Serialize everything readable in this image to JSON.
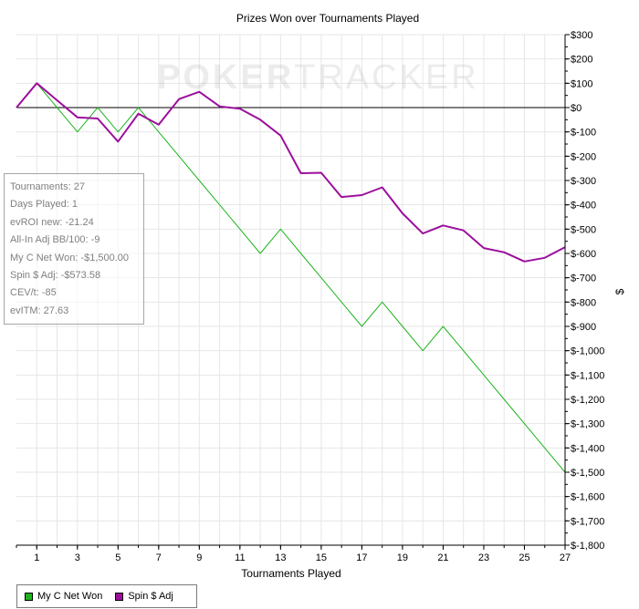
{
  "chart_data": {
    "type": "line",
    "title": "Prizes Won over Tournaments Played",
    "xlabel": "Tournaments Played",
    "ylabel": "$",
    "xlim": [
      0,
      27
    ],
    "ylim": [
      -1800,
      300
    ],
    "x_ticks": [
      1,
      3,
      5,
      7,
      9,
      11,
      13,
      15,
      17,
      19,
      21,
      23,
      25,
      27
    ],
    "y_ticks": [
      300,
      200,
      100,
      0,
      -100,
      -200,
      -300,
      -400,
      -500,
      -600,
      -700,
      -800,
      -900,
      -1000,
      -1100,
      -1200,
      -1300,
      -1400,
      -1500,
      -1600,
      -1700,
      -1800
    ],
    "y_tick_labels": [
      "$300",
      "$200",
      "$100",
      "$0",
      "$-100",
      "$-200",
      "$-300",
      "$-400",
      "$-500",
      "$-600",
      "$-700",
      "$-800",
      "$-900",
      "$-1,000",
      "$-1,100",
      "$-1,200",
      "$-1,300",
      "$-1,400",
      "$-1,500",
      "$-1,600",
      "$-1,700",
      "$-1,800"
    ],
    "grid": true,
    "y_axis_side": "right",
    "legend_position": "bottom-left",
    "series": [
      {
        "name": "My C Net Won",
        "color": "#1db41d",
        "x": [
          0,
          1,
          2,
          3,
          4,
          5,
          6,
          7,
          8,
          9,
          10,
          11,
          12,
          13,
          14,
          15,
          16,
          17,
          18,
          19,
          20,
          21,
          22,
          23,
          24,
          25,
          26,
          27
        ],
        "values": [
          0,
          100,
          0,
          -100,
          0,
          -100,
          0,
          -100,
          -200,
          -300,
          -400,
          -500,
          -600,
          -500,
          -600,
          -700,
          -800,
          -900,
          -800,
          -900,
          -1000,
          -900,
          -1000,
          -1100,
          -1200,
          -1300,
          -1400,
          -1500
        ]
      },
      {
        "name": "Spin $ Adj",
        "color": "#9c0f9c",
        "x": [
          0,
          1,
          2,
          3,
          4,
          5,
          6,
          7,
          8,
          9,
          10,
          11,
          12,
          13,
          14,
          15,
          16,
          17,
          18,
          19,
          20,
          21,
          22,
          23,
          24,
          25,
          26,
          27
        ],
        "values": [
          0,
          100,
          30,
          -40,
          -45,
          -140,
          -25,
          -70,
          35,
          65,
          5,
          -5,
          -50,
          -115,
          -270,
          -268,
          -368,
          -360,
          -328,
          -435,
          -518,
          -485,
          -505,
          -578,
          -595,
          -633,
          -618,
          -574
        ]
      }
    ]
  },
  "watermark": {
    "bold": "POKER",
    "thin": "TRACKER"
  },
  "stats": [
    "Tournaments: 27",
    "Days Played: 1",
    "evROI new: -21.24",
    "All-In Adj BB/100: -9",
    "My C Net Won: -$1,500.00",
    "Spin $ Adj: -$573.58",
    "CEV/t: -85",
    "evITM: 27.63"
  ],
  "legend": {
    "items": [
      {
        "label": "My C Net Won",
        "color": "#1db41d"
      },
      {
        "label": "Spin $ Adj",
        "color": "#9c0f9c"
      }
    ]
  },
  "colors": {
    "grid": "#e6e6e6",
    "axis": "#000000",
    "zero_line": "#000000"
  }
}
